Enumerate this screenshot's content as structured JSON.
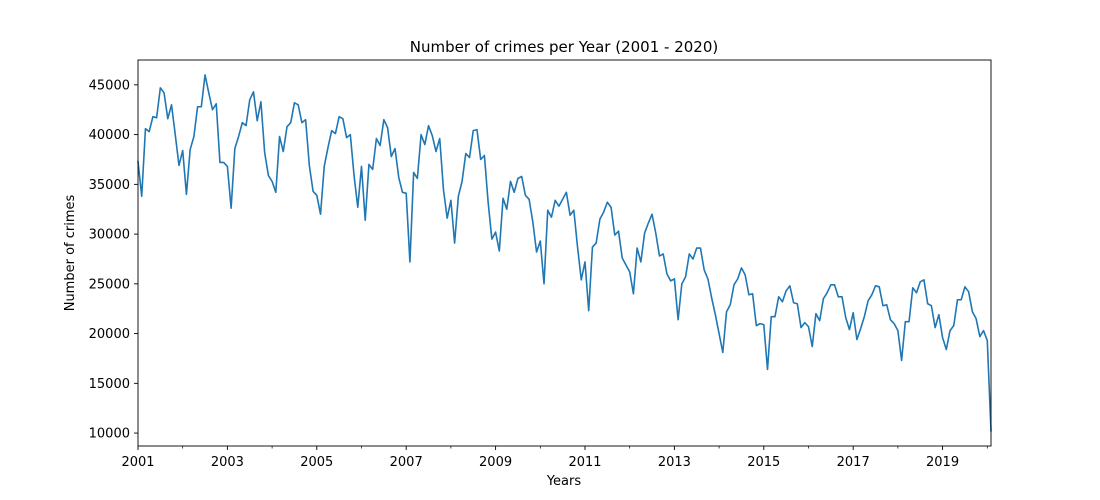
{
  "chart_data": {
    "type": "line",
    "title": "Number of crimes per Year (2001 - 2020)",
    "xlabel": "Years",
    "ylabel": "Number of crimes",
    "x_start": "2001-01",
    "x_step": "month",
    "xlim": [
      "2001-01",
      "2020-02"
    ],
    "ylim": [
      8700,
      47500
    ],
    "yticks": [
      10000,
      15000,
      20000,
      25000,
      30000,
      35000,
      40000,
      45000
    ],
    "xticks": [
      "2001",
      "2003",
      "2005",
      "2007",
      "2009",
      "2011",
      "2013",
      "2015",
      "2017",
      "2019"
    ],
    "line_color": "#1f77b4",
    "grid": false,
    "legend": "none",
    "series": [
      {
        "values": [
          37300,
          33800,
          40600,
          40300,
          41800,
          41700,
          44700,
          44200,
          41600,
          43000,
          40000,
          36900,
          38400,
          34000,
          38500,
          39800,
          42800,
          42800,
          46000,
          44200,
          42500,
          43100,
          37200,
          37200,
          36800,
          32600,
          38600,
          39800,
          41200,
          40900,
          43500,
          44300,
          41400,
          43300,
          38200,
          35900,
          35300,
          34200,
          39800,
          38300,
          40800,
          41200,
          43200,
          43000,
          41200,
          41500,
          36900,
          34300,
          33900,
          32000,
          36800,
          38700,
          40400,
          40100,
          41800,
          41600,
          39700,
          40000,
          35900,
          32700,
          36800,
          31400,
          37000,
          36500,
          39600,
          38900,
          41500,
          40700,
          37800,
          38600,
          35700,
          34200,
          34100,
          27200,
          36200,
          35600,
          40000,
          39000,
          40900,
          39900,
          38300,
          39600,
          34500,
          31600,
          33400,
          29100,
          33800,
          35300,
          38100,
          37700,
          40400,
          40500,
          37500,
          37900,
          33200,
          29500,
          30200,
          28300,
          33600,
          32500,
          35300,
          34200,
          35600,
          35800,
          33900,
          33500,
          31200,
          28200,
          29300,
          25000,
          32400,
          31700,
          33400,
          32800,
          33500,
          34200,
          31900,
          32400,
          28700,
          25400,
          27200,
          22300,
          28700,
          29100,
          31500,
          32200,
          33200,
          32700,
          29900,
          30300,
          27600,
          26900,
          26200,
          24000,
          28600,
          27200,
          30100,
          31100,
          32000,
          30100,
          27800,
          28000,
          26000,
          25300,
          25500,
          21400,
          25000,
          25700,
          28000,
          27500,
          28600,
          28600,
          26400,
          25500,
          23600,
          21900,
          20000,
          18100,
          22200,
          22900,
          24900,
          25500,
          26600,
          25900,
          23900,
          24000,
          20800,
          21000,
          20900,
          16400,
          21700,
          21700,
          23700,
          23200,
          24300,
          24800,
          23100,
          23000,
          20600,
          21100,
          20700,
          18700,
          22000,
          21300,
          23500,
          24100,
          24900,
          24900,
          23700,
          23700,
          21600,
          20400,
          22100,
          19400,
          20500,
          21700,
          23300,
          23900,
          24800,
          24700,
          22800,
          22900,
          21400,
          21000,
          20300,
          17300,
          21200,
          21200,
          24600,
          24100,
          25200,
          25400,
          23000,
          22800,
          20600,
          21900,
          19600,
          18400,
          20300,
          20800,
          23400,
          23400,
          24700,
          24200,
          22200,
          21500,
          19700,
          20300,
          19300,
          10200
        ]
      }
    ]
  }
}
